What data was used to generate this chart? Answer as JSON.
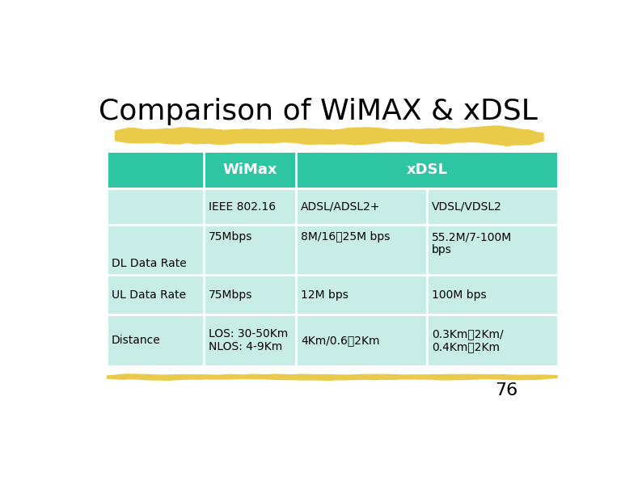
{
  "title": "Comparison of WiMAX & xDSL",
  "title_fontsize": 26,
  "background_color": "#ffffff",
  "page_number": "76",
  "highlight_color": "#E8C430",
  "header_bg": "#2DC5A2",
  "row_bg_light": "#C8EDE6",
  "header_text_color": "#ffffff",
  "cell_text_color": "#000000",
  "table": {
    "rows": [
      [
        "",
        "IEEE 802.16",
        "ADSL/ADSL2+",
        "VDSL/VDSL2"
      ],
      [
        "DL Data Rate",
        "75Mbps",
        "8M/16⁲25M bps",
        "55.2M/7-100M\nbps"
      ],
      [
        "UL Data Rate",
        "75Mbps",
        "12M bps",
        "100M bps"
      ],
      [
        "Distance",
        "LOS: 30-50Km\nNLOS: 4-9Km",
        "4Km/0.6⁲2Km",
        "0.3Km⁲2Km/\n0.4Km⁲2Km"
      ]
    ]
  }
}
